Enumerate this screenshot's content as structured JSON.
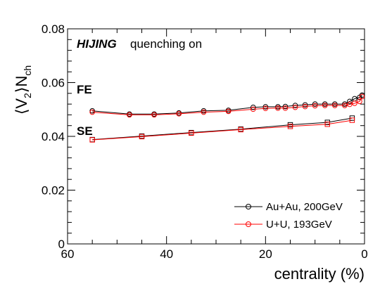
{
  "chart_data": {
    "type": "line",
    "title": "",
    "xlabel": "centrality (%)",
    "ylabel": "⟨V₂⟩N_ch",
    "xlim": [
      60,
      0
    ],
    "ylim": [
      0,
      0.08
    ],
    "x_ticks": [
      "60",
      "40",
      "20",
      "0"
    ],
    "y_ticks": [
      "0",
      "0.02",
      "0.04",
      "0.06",
      "0.08"
    ],
    "grid": false,
    "legend_position": "bottom-right",
    "annotations": {
      "hijing": "HIJING",
      "quenching": "quenching on",
      "fe": "FE",
      "se": "SE"
    },
    "series": [
      {
        "name": "Au+Au, 200GeV",
        "color": "#000000",
        "marker": "open-circle",
        "group": "FE",
        "x": [
          55,
          47.5,
          42.5,
          37.5,
          32.5,
          27.5,
          22.5,
          20,
          17.5,
          16,
          14,
          12,
          10,
          8,
          6,
          4,
          3,
          2,
          1,
          0.5
        ],
        "y": [
          0.0495,
          0.0483,
          0.0483,
          0.0487,
          0.0495,
          0.0497,
          0.0508,
          0.051,
          0.051,
          0.0511,
          0.0515,
          0.0517,
          0.052,
          0.052,
          0.052,
          0.052,
          0.053,
          0.054,
          0.0545,
          0.0553
        ]
      },
      {
        "name": "U+U, 193GeV",
        "color": "#ff0000",
        "marker": "open-circle",
        "group": "FE",
        "x": [
          55,
          47.5,
          42.5,
          37.5,
          32.5,
          27.5,
          22.5,
          20,
          17.5,
          16,
          14,
          12,
          10,
          8,
          6,
          4,
          3,
          2,
          1,
          0.5
        ],
        "y": [
          0.049,
          0.048,
          0.048,
          0.0484,
          0.049,
          0.0493,
          0.0501,
          0.0504,
          0.0505,
          0.0505,
          0.0508,
          0.0511,
          0.0514,
          0.0515,
          0.0515,
          0.0515,
          0.0519,
          0.0523,
          0.053,
          0.0548
        ]
      },
      {
        "name": "Au+Au, 200GeV",
        "color": "#000000",
        "marker": "open-square",
        "group": "SE",
        "x": [
          55,
          45,
          35,
          25,
          15,
          7.5,
          2.5
        ],
        "y": [
          0.0388,
          0.0401,
          0.0414,
          0.0427,
          0.0443,
          0.0452,
          0.0468
        ]
      },
      {
        "name": "U+U, 193GeV",
        "color": "#ff0000",
        "marker": "open-square",
        "group": "SE",
        "x": [
          55,
          45,
          35,
          25,
          15,
          7.5,
          2.5
        ],
        "y": [
          0.0387,
          0.0399,
          0.0412,
          0.0425,
          0.0437,
          0.0445,
          0.046
        ]
      }
    ],
    "legend": [
      {
        "label": "Au+Au, 200GeV",
        "color": "#000000"
      },
      {
        "label": "U+U, 193GeV",
        "color": "#ff0000"
      }
    ]
  }
}
